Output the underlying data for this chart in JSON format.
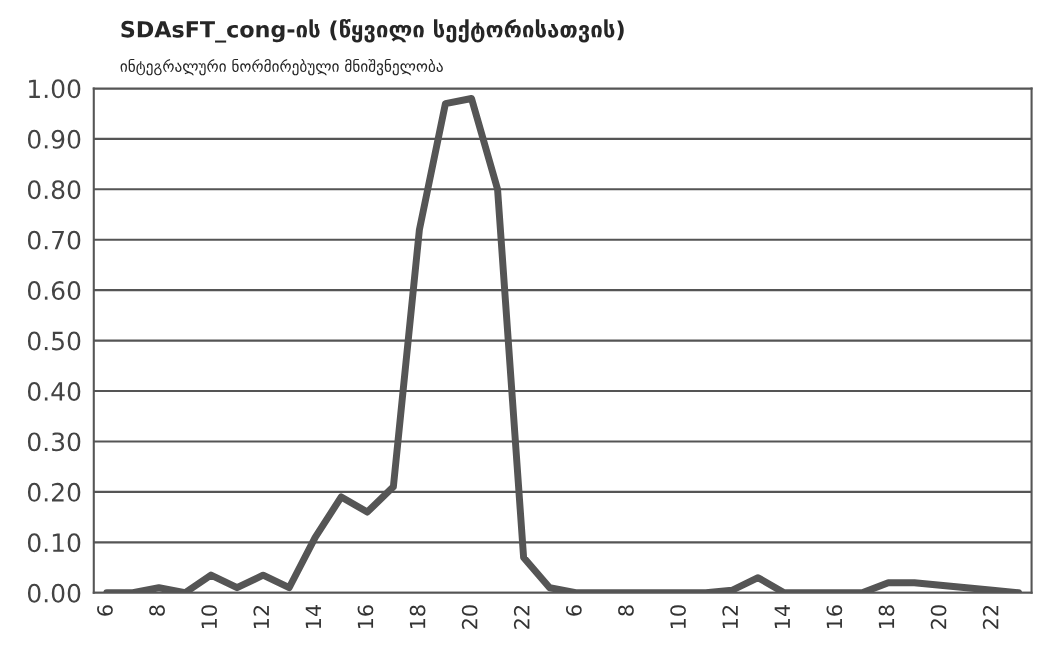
{
  "chart_data": {
    "type": "line",
    "title": "SDAsFT_cong-ის (წყვილი სექტორისათვის)",
    "subtitle": "ინტეგრალური ნორმირებული მნიშვნელობა",
    "categories": [
      "6",
      null,
      "8",
      null,
      "10",
      null,
      "12",
      null,
      "14",
      null,
      "16",
      null,
      "18",
      null,
      "20",
      null,
      "22",
      null,
      "6",
      null,
      "8",
      null,
      "10",
      null,
      "12",
      null,
      "14",
      null,
      "16",
      null,
      "18",
      null,
      "20",
      null,
      "22",
      null
    ],
    "series": [
      {
        "color": "#555555",
        "values": [
          0,
          0,
          0.01,
          0,
          0.035,
          0.01,
          0.035,
          0.01,
          0.11,
          0.19,
          0.16,
          0.21,
          0.72,
          0.97,
          0.98,
          0.8,
          0.07,
          0.01,
          0,
          0,
          0,
          0,
          0,
          0,
          0.005,
          0.03,
          0,
          0,
          0,
          0,
          0.02,
          0.02,
          0.015,
          0.01,
          0.005,
          0
        ]
      }
    ],
    "ylim": [
      0,
      1
    ],
    "yticks": [
      {
        "value": 0,
        "label": "0.00"
      },
      {
        "value": 0.1,
        "label": "0.10"
      },
      {
        "value": 0.2,
        "label": "0.20"
      },
      {
        "value": 0.3,
        "label": "0.30"
      },
      {
        "value": 0.4,
        "label": "0.40"
      },
      {
        "value": 0.5,
        "label": "0.50"
      },
      {
        "value": 0.6,
        "label": "0.60"
      },
      {
        "value": 0.7,
        "label": "0.70"
      },
      {
        "value": 0.8,
        "label": "0.80"
      },
      {
        "value": 0.9,
        "label": "0.90"
      },
      {
        "value": 1,
        "label": "1.00"
      }
    ],
    "grid": "y",
    "marker": "none",
    "line_style": "solid"
  }
}
